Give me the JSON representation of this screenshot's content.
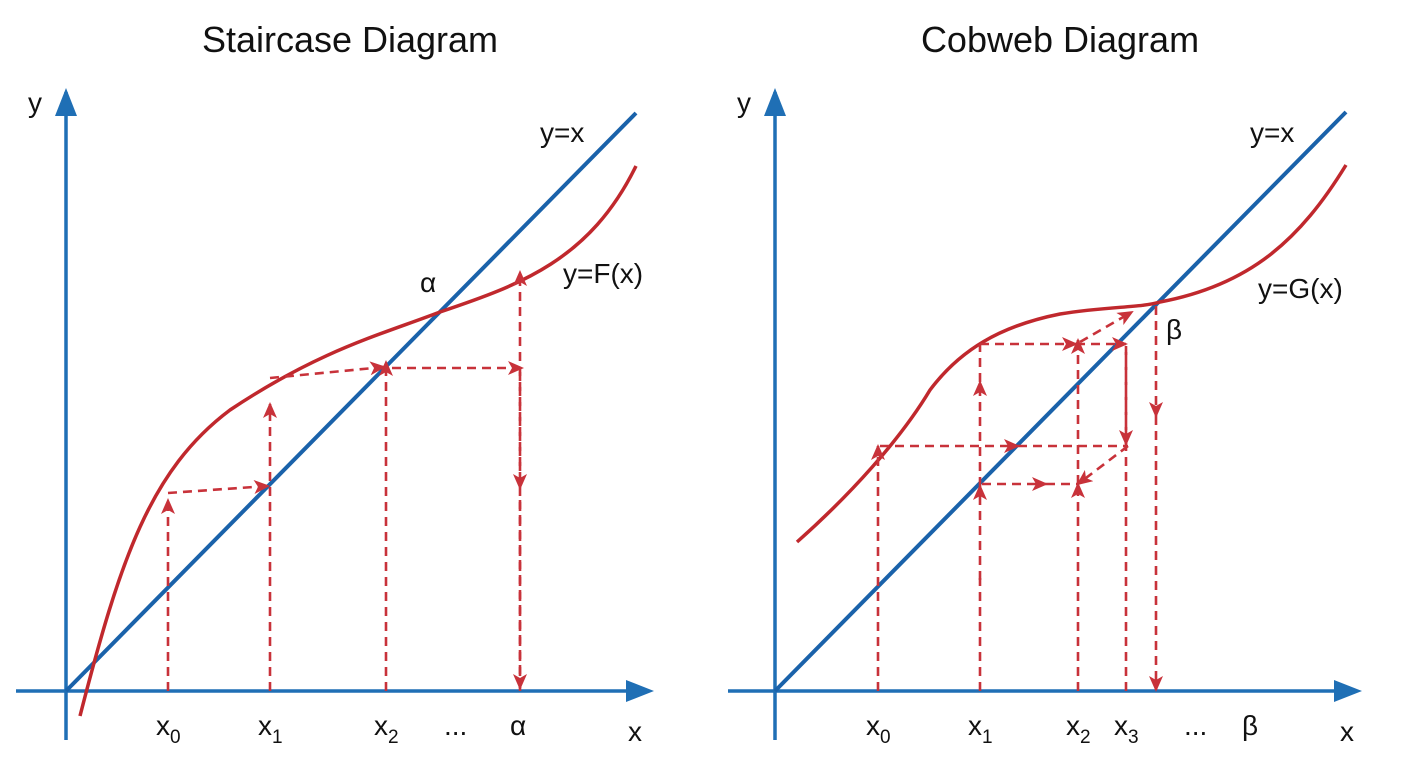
{
  "left": {
    "title": "Staircase Diagram",
    "y_axis_label": "y",
    "x_axis_label": "x",
    "line_label": "y=x",
    "curve_label": "y=F(x)",
    "fixed_point_label": "α",
    "ticks": [
      {
        "base": "x",
        "sub": "0"
      },
      {
        "base": "x",
        "sub": "1"
      },
      {
        "base": "x",
        "sub": "2"
      },
      {
        "base": "...",
        "sub": ""
      },
      {
        "base": "α",
        "sub": ""
      }
    ]
  },
  "right": {
    "title": "Cobweb Diagram",
    "y_axis_label": "y",
    "x_axis_label": "x",
    "line_label": "y=x",
    "curve_label": "y=G(x)",
    "fixed_point_label": "β",
    "ticks": [
      {
        "base": "x",
        "sub": "0"
      },
      {
        "base": "x",
        "sub": "1"
      },
      {
        "base": "x",
        "sub": "2"
      },
      {
        "base": "x",
        "sub": "3"
      },
      {
        "base": "...",
        "sub": ""
      },
      {
        "base": "β",
        "sub": ""
      }
    ]
  },
  "colors": {
    "axes": "#1f6fb5",
    "identity_line": "#1a62aa",
    "curve": "#c0282d",
    "iteration_arrows": "#c8323a"
  }
}
